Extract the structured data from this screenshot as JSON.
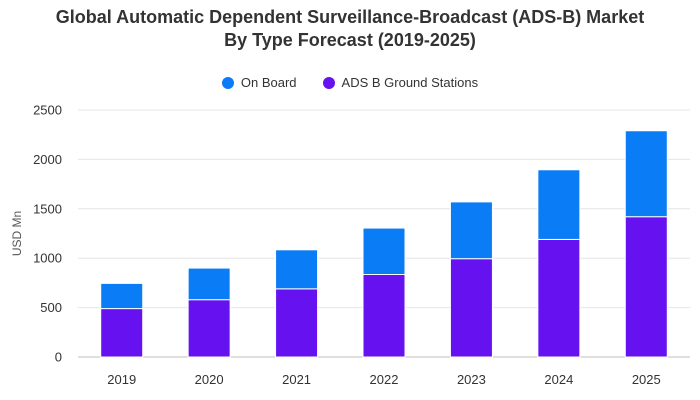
{
  "chart_data": {
    "type": "bar",
    "stacked": true,
    "title_lines": [
      "Global Automatic Dependent Surveillance-Broadcast (ADS-B) Market",
      "By Type Forecast (2019-2025)"
    ],
    "categories": [
      "2019",
      "2020",
      "2021",
      "2022",
      "2023",
      "2024",
      "2025"
    ],
    "series": [
      {
        "name": "ADS B Ground Stations",
        "color": "#6611F0",
        "values": [
          490,
          580,
          690,
          835,
          995,
          1190,
          1420
        ]
      },
      {
        "name": "On Board",
        "color": "#0A7CF5",
        "values": [
          255,
          320,
          395,
          470,
          575,
          705,
          870
        ]
      }
    ],
    "legend_order": [
      "On Board",
      "ADS B Ground Stations"
    ],
    "legend_position": "top-center",
    "ylabel": "USD Mn",
    "xlabel": "",
    "ylim": [
      0,
      2500
    ],
    "yticks": [
      0,
      500,
      1000,
      1500,
      2000,
      2500
    ],
    "grid": true
  }
}
